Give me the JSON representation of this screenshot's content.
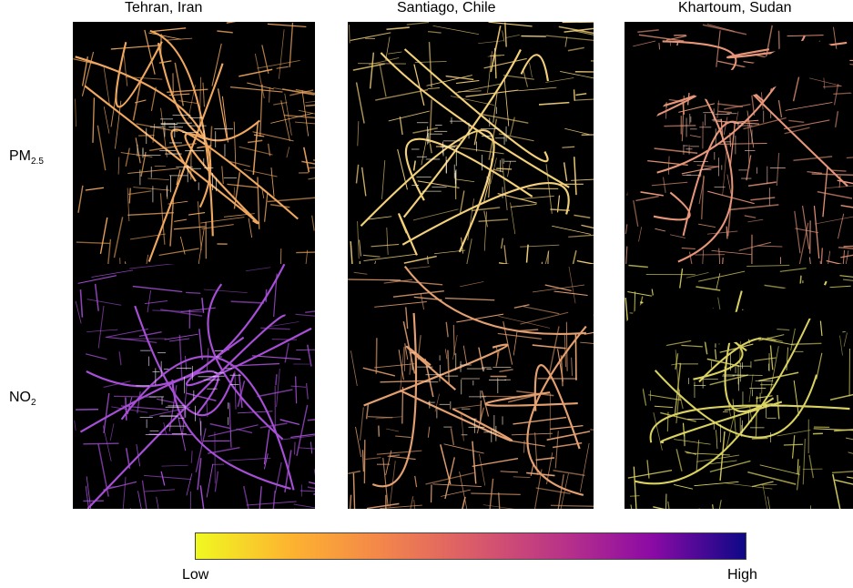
{
  "columns": [
    {
      "title": "Tehran, Iran"
    },
    {
      "title": "Santiago, Chile"
    },
    {
      "title": "Khartoum, Sudan"
    }
  ],
  "rows": [
    {
      "label_main": "PM",
      "label_sub": "2.5"
    },
    {
      "label_main": "NO",
      "label_sub": "2"
    }
  ],
  "panels": [
    {
      "city": "Tehran, Iran",
      "pollutant": "PM2.5",
      "level": "low-medium",
      "color": "#f0a860",
      "hot_color": "#fff2df"
    },
    {
      "city": "Santiago, Chile",
      "pollutant": "PM2.5",
      "level": "low",
      "color": "#f3d07a",
      "hot_color": "#fff6d8"
    },
    {
      "city": "Khartoum, Sudan",
      "pollutant": "PM2.5",
      "level": "medium",
      "color": "#e8967a",
      "hot_color": "#f6c4b0"
    },
    {
      "city": "Tehran, Iran",
      "pollutant": "NO2",
      "level": "medium-high",
      "color": "#a84fd8",
      "hot_color": "#f1dcff"
    },
    {
      "city": "Santiago, Chile",
      "pollutant": "NO2",
      "level": "low-medium",
      "color": "#e4a070",
      "hot_color": "#ffe6c8"
    },
    {
      "city": "Khartoum, Sudan",
      "pollutant": "NO2",
      "level": "low",
      "color": "#d9d160",
      "hot_color": "#f4ee9a"
    }
  ],
  "colorbar": {
    "low_label": "Low",
    "high_label": "High",
    "colormap": "plasma (reversed)",
    "stops": [
      "#f0f921",
      "#fdb42f",
      "#f48849",
      "#db5c68",
      "#b83289",
      "#8b0aa5",
      "#0d0887"
    ]
  }
}
